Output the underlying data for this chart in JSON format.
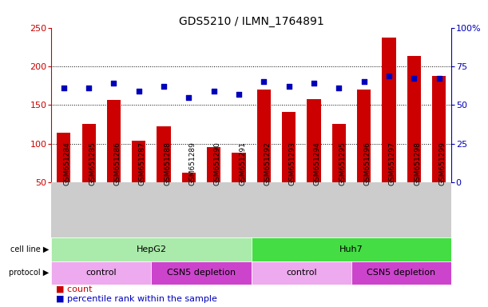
{
  "title": "GDS5210 / ILMN_1764891",
  "samples": [
    "GSM651284",
    "GSM651285",
    "GSM651286",
    "GSM651287",
    "GSM651288",
    "GSM651289",
    "GSM651290",
    "GSM651291",
    "GSM651292",
    "GSM651293",
    "GSM651294",
    "GSM651295",
    "GSM651296",
    "GSM651297",
    "GSM651298",
    "GSM651299"
  ],
  "counts": [
    114,
    126,
    157,
    104,
    122,
    63,
    96,
    88,
    170,
    141,
    158,
    126,
    170,
    237,
    213,
    188
  ],
  "percentile_ranks": [
    61,
    61,
    64,
    59,
    62,
    55,
    59,
    57,
    65,
    62,
    64,
    61,
    65,
    69,
    67,
    67
  ],
  "ylim_left": [
    50,
    250
  ],
  "ylim_right": [
    0,
    100
  ],
  "yticks_left": [
    50,
    100,
    150,
    200,
    250
  ],
  "yticks_right": [
    0,
    25,
    50,
    75,
    100
  ],
  "ytick_labels_right": [
    "0",
    "25",
    "50",
    "75",
    "100%"
  ],
  "hgrid_vals": [
    100,
    150,
    200
  ],
  "bar_color": "#cc0000",
  "dot_color": "#0000bb",
  "cell_line_groups": [
    {
      "label": "HepG2",
      "start": 0,
      "end": 8,
      "color": "#aaeaaa"
    },
    {
      "label": "Huh7",
      "start": 8,
      "end": 16,
      "color": "#44dd44"
    }
  ],
  "protocol_groups": [
    {
      "label": "control",
      "start": 0,
      "end": 4,
      "color": "#eeaaee"
    },
    {
      "label": "CSN5 depletion",
      "start": 4,
      "end": 8,
      "color": "#cc44cc"
    },
    {
      "label": "control",
      "start": 8,
      "end": 12,
      "color": "#eeaaee"
    },
    {
      "label": "CSN5 depletion",
      "start": 12,
      "end": 16,
      "color": "#cc44cc"
    }
  ],
  "legend_count_color": "#cc0000",
  "legend_dot_color": "#0000bb",
  "tick_label_color_left": "#cc0000",
  "tick_label_color_right": "#0000bb",
  "bar_width": 0.55,
  "dot_size": 25,
  "xlabel_bg": "#cccccc",
  "n": 16
}
